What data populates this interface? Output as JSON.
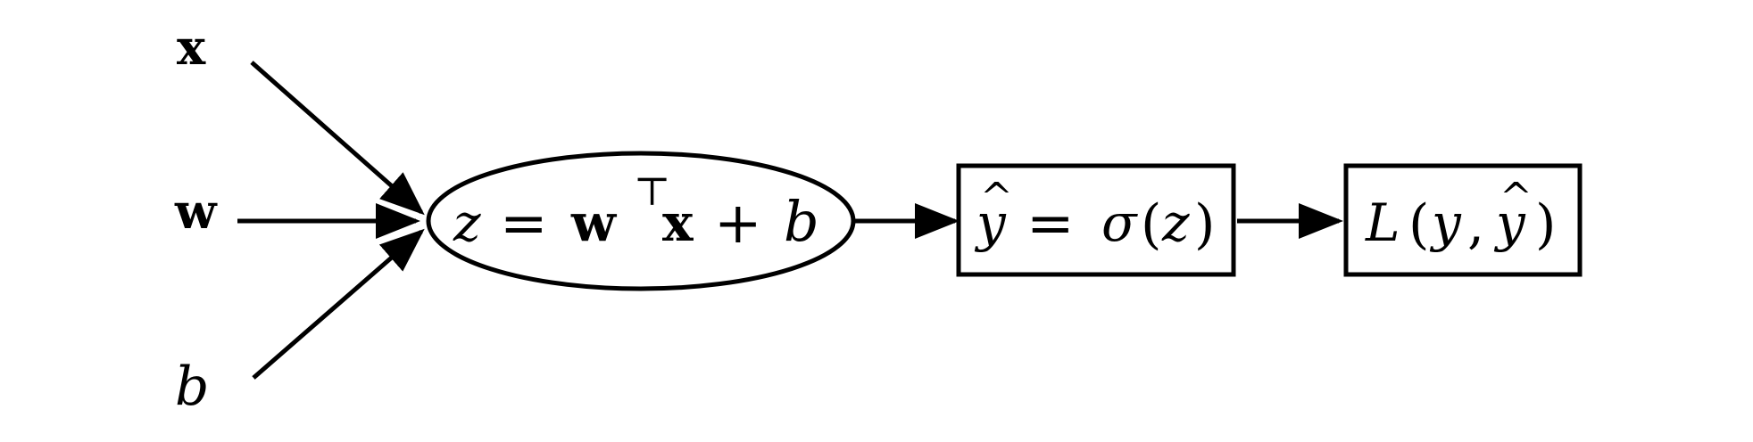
{
  "inputs": {
    "x": "x",
    "w": "w",
    "b": "b"
  },
  "node_linear": {
    "z": "z",
    "equals": "=",
    "w": "w",
    "transpose": "⊤",
    "x": "x",
    "plus": "+",
    "b": "b"
  },
  "node_activation": {
    "y": "y",
    "hat": "^",
    "equals": "=",
    "sigma": "σ",
    "open": "(",
    "z": "z",
    "close": ")"
  },
  "node_loss": {
    "L": "L",
    "open": "(",
    "y": "y",
    "comma": ",",
    "y2": "y",
    "hat": "^",
    "close": ")"
  },
  "colors": {
    "stroke": "#000000",
    "background": "#ffffff"
  }
}
